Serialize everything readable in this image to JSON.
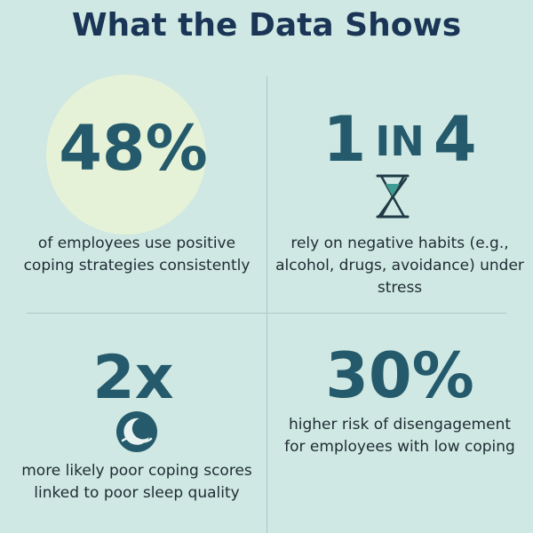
{
  "header": {
    "title": "What the Data Shows"
  },
  "stats": {
    "positive": {
      "value": "48%",
      "description": "of employees use positive coping strategies consistently"
    },
    "negative": {
      "value_left": "1",
      "value_mid": "IN",
      "value_right": "4",
      "icon": "hourglass-icon",
      "description": "rely on negative habits (e.g., alcohol, drugs, avoidance) under stress"
    },
    "sleep": {
      "value": "2x",
      "icon": "moon-icon",
      "description": "more likely poor coping scores linked to poor sleep quality"
    },
    "disengagement": {
      "value": "30%",
      "description": "higher risk of disengagement for employees with low coping"
    }
  },
  "colors": {
    "background": "#cfe8e3",
    "title": "#1a3556",
    "stat": "#245a6b",
    "highlight": "#e5f2d7",
    "divider": "#a9c8c9"
  }
}
